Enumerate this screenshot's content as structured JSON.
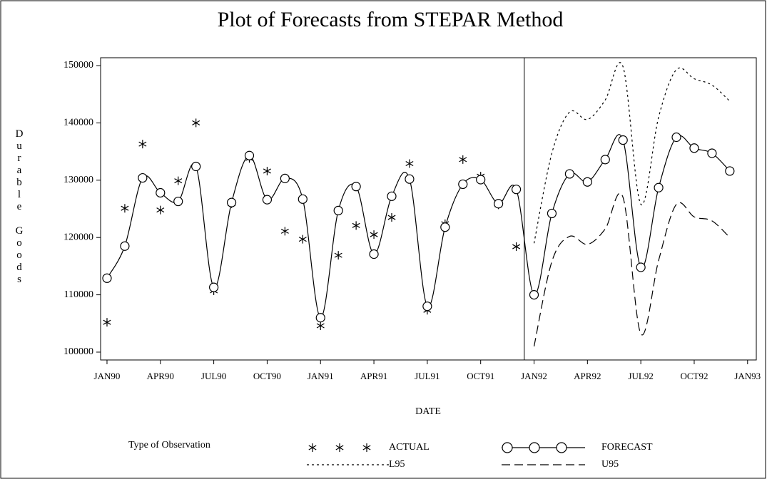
{
  "chart_data": {
    "type": "line",
    "title": "Plot of Forecasts from STEPAR Method",
    "x_label": "DATE",
    "y_label": "Durable Goods",
    "legend_title": "Type of Observation",
    "x": [
      0,
      1,
      2,
      3,
      4,
      5,
      6,
      7,
      8,
      9,
      10,
      11,
      12,
      13,
      14,
      15,
      16,
      17,
      18,
      19,
      20,
      21,
      22,
      23,
      24,
      25,
      26,
      27,
      28,
      29,
      30,
      31,
      32,
      33,
      34,
      35
    ],
    "xlim": [
      -0.36,
      36.49
    ],
    "xticks": [
      {
        "value": 0,
        "label": "JAN90"
      },
      {
        "value": 3,
        "label": "APR90"
      },
      {
        "value": 6,
        "label": "JUL90"
      },
      {
        "value": 9,
        "label": "OCT90"
      },
      {
        "value": 12,
        "label": "JAN91"
      },
      {
        "value": 15,
        "label": "APR91"
      },
      {
        "value": 18,
        "label": "JUL91"
      },
      {
        "value": 21,
        "label": "OCT91"
      },
      {
        "value": 24,
        "label": "JAN92"
      },
      {
        "value": 27,
        "label": "APR92"
      },
      {
        "value": 30,
        "label": "JUL92"
      },
      {
        "value": 33,
        "label": "OCT92"
      },
      {
        "value": 36,
        "label": "JAN93"
      }
    ],
    "ylim": [
      98630,
      151370
    ],
    "yticks": [
      100000,
      110000,
      120000,
      130000,
      140000,
      150000
    ],
    "reference_line_x": 23.45,
    "series": [
      {
        "name": "ACTUAL",
        "color": "#000000",
        "marker": "star",
        "line_style": "none",
        "values": [
          105200,
          125100,
          136300,
          124800,
          129900,
          140000,
          110700,
          125900,
          133800,
          131600,
          121100,
          119700,
          104600,
          116900,
          122100,
          120500,
          123500,
          132900,
          107300,
          122400,
          133600,
          130700,
          125700,
          118400,
          null,
          null,
          null,
          null,
          null,
          null,
          null,
          null,
          null,
          null,
          null,
          null
        ]
      },
      {
        "name": "FORECAST",
        "color": "#000000",
        "marker": "circle",
        "line_style": "solid",
        "values": [
          112900,
          118500,
          130400,
          127800,
          126300,
          132400,
          111300,
          126100,
          134300,
          126600,
          130300,
          126700,
          106000,
          124700,
          128900,
          117100,
          127200,
          130200,
          108000,
          121800,
          129300,
          130100,
          125900,
          128400,
          110000,
          124200,
          131100,
          129700,
          133600,
          137000,
          114800,
          128700,
          137500,
          135600,
          134700,
          131600
        ]
      },
      {
        "name": "L95",
        "color": "#000000",
        "marker": "none",
        "line_style": "shortdash",
        "values": [
          null,
          null,
          null,
          null,
          null,
          null,
          null,
          null,
          null,
          null,
          null,
          null,
          null,
          null,
          null,
          null,
          null,
          null,
          null,
          null,
          null,
          null,
          null,
          null,
          119000,
          134700,
          141900,
          140600,
          144000,
          149800,
          125800,
          141000,
          149300,
          147700,
          146600,
          143800
        ]
      },
      {
        "name": "U95",
        "color": "#000000",
        "marker": "none",
        "line_style": "longdash",
        "values": [
          null,
          null,
          null,
          null,
          null,
          null,
          null,
          null,
          null,
          null,
          null,
          null,
          null,
          null,
          null,
          null,
          null,
          null,
          null,
          null,
          null,
          null,
          null,
          null,
          101000,
          115800,
          120200,
          118800,
          121500,
          127000,
          103200,
          116000,
          125800,
          123600,
          122900,
          120000
        ]
      }
    ]
  }
}
